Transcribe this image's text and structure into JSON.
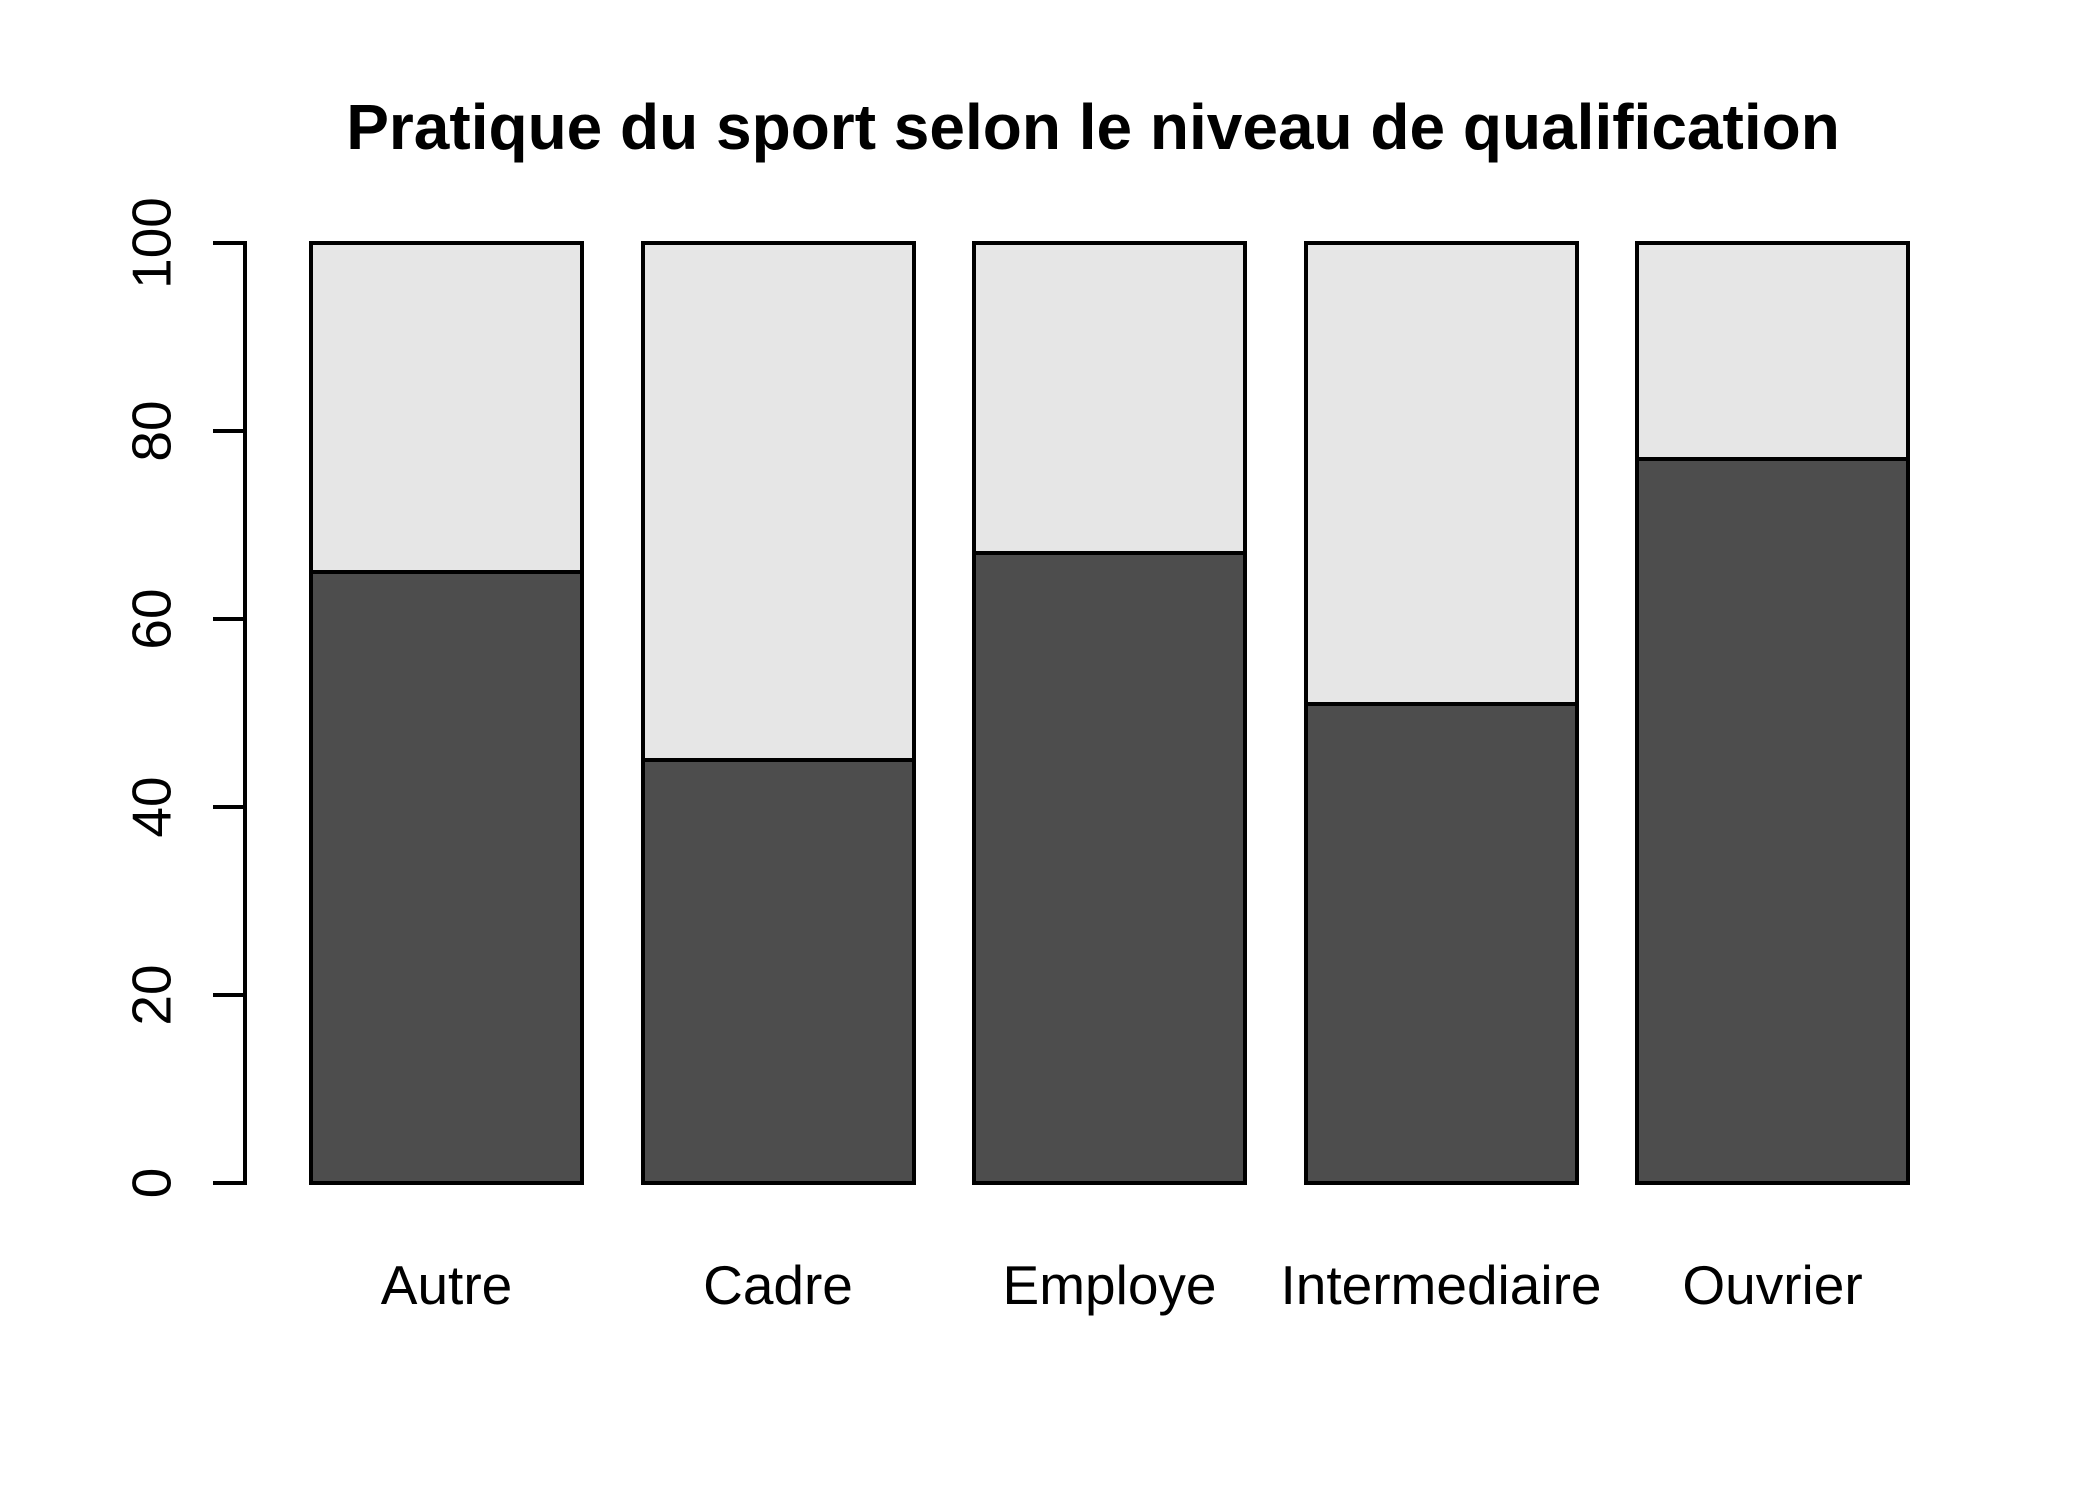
{
  "chart_data": {
    "type": "bar",
    "stacked": true,
    "title": "Pratique du sport selon le niveau de qualification",
    "categories": [
      "Autre",
      "Cadre",
      "Employe",
      "Intermediaire",
      "Ouvrier"
    ],
    "series": [
      {
        "name": "segment-dark-bottom",
        "color": "#4D4D4D",
        "values": [
          65,
          45,
          67,
          51,
          77
        ]
      },
      {
        "name": "segment-light-top",
        "color": "#E6E6E6",
        "values": [
          35,
          55,
          33,
          49,
          23
        ]
      }
    ],
    "ylim": [
      0,
      100
    ],
    "yticks": [
      "0",
      "20",
      "40",
      "60",
      "80",
      "100"
    ],
    "xlabel": "",
    "ylabel": "",
    "legend": "none",
    "grid": false,
    "colors": {
      "bar_border": "#000000",
      "axis": "#000000",
      "background": "#FFFFFF",
      "text": "#000000"
    }
  }
}
